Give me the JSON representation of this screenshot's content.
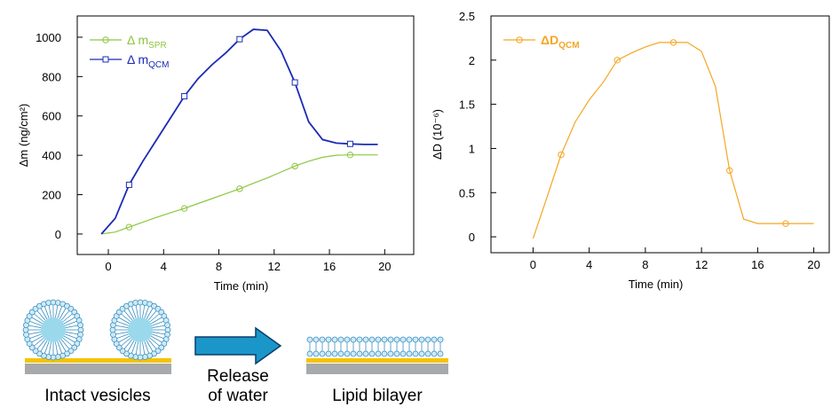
{
  "chart_data": [
    {
      "type": "line",
      "x_label": "Time (min)",
      "y_label": "Δm (ng/cm²)",
      "x": [
        -0.5,
        0.5,
        1.5,
        2.5,
        3.5,
        4.5,
        5.5,
        6.5,
        7.5,
        8.5,
        9.5,
        10.5,
        11.5,
        12.5,
        13.5,
        14.5,
        15.5,
        16.5,
        17.5,
        18.5,
        19.5
      ],
      "series": [
        {
          "name": "Δ m",
          "sub": "SPR",
          "color": "#8dc63f",
          "marker": "circle",
          "values": [
            0,
            10,
            35,
            60,
            85,
            108,
            130,
            155,
            180,
            205,
            230,
            258,
            285,
            315,
            345,
            370,
            390,
            400,
            402,
            402,
            402
          ]
        },
        {
          "name": "Δ m",
          "sub": "QCM",
          "color": "#1a2bb5",
          "marker": "square",
          "values": [
            0,
            80,
            250,
            370,
            480,
            590,
            700,
            790,
            860,
            920,
            990,
            1040,
            1035,
            930,
            770,
            570,
            480,
            462,
            458,
            455,
            455
          ]
        }
      ],
      "xlim": [
        -2.25,
        22.1
      ],
      "ylim": [
        -104,
        1108
      ],
      "xticks": [
        0,
        4,
        8,
        12,
        16,
        20
      ],
      "yticks": [
        0,
        200,
        400,
        600,
        800,
        1000
      ],
      "legend": "upper left"
    },
    {
      "type": "line",
      "x_label": "Time (min)",
      "y_label": "ΔD (10⁻⁶)",
      "x": [
        0,
        1,
        2,
        3,
        4,
        5,
        6,
        7,
        8,
        9,
        10,
        11,
        12,
        13,
        14,
        15,
        16,
        17,
        18,
        19,
        20
      ],
      "series": [
        {
          "name": "ΔD",
          "sub": "QCM",
          "color": "#f5a623",
          "marker": "circle",
          "values": [
            -0.02,
            0.45,
            0.93,
            1.3,
            1.55,
            1.75,
            2.0,
            2.08,
            2.15,
            2.2,
            2.2,
            2.2,
            2.1,
            1.7,
            0.75,
            0.2,
            0.15,
            0.15,
            0.15,
            0.15,
            0.15
          ]
        }
      ],
      "xlim": [
        -3,
        21.1
      ],
      "ylim": [
        -0.18,
        2.5
      ],
      "xticks": [
        0,
        4,
        8,
        12,
        16,
        20
      ],
      "yticks": [
        0,
        0.5,
        1,
        1.5,
        2,
        2.5
      ],
      "legend": "upper left"
    }
  ],
  "diagram": {
    "labels": [
      "Intact vesicles",
      "Release",
      "of water",
      "Lipid bilayer"
    ]
  }
}
